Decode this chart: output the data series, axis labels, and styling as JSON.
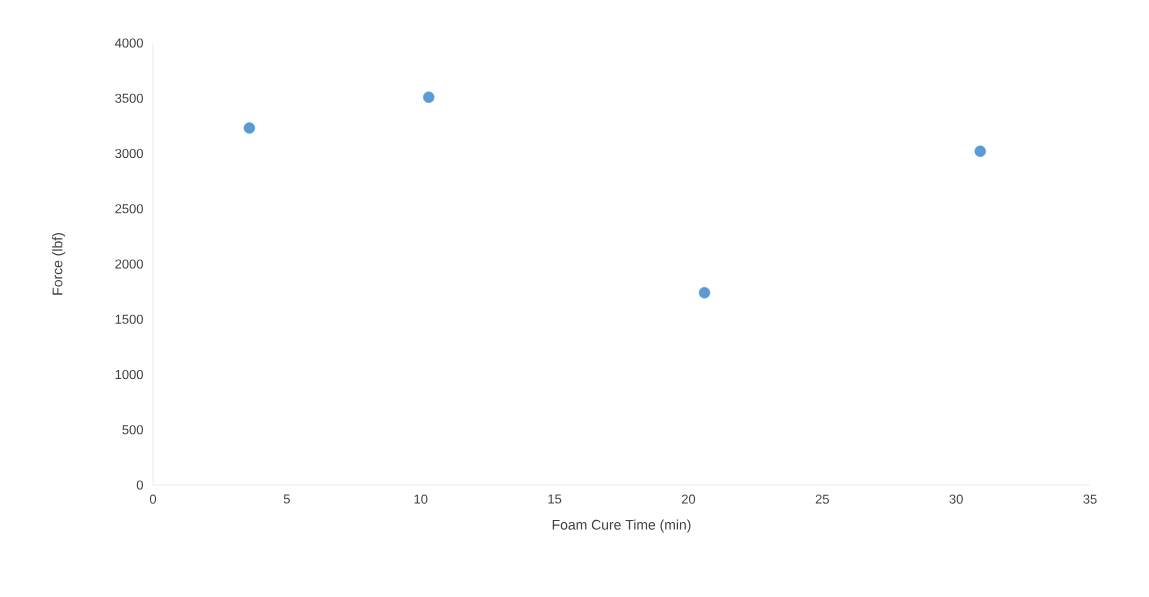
{
  "chart_data": {
    "type": "scatter",
    "xlabel": "Foam Cure Time (min)",
    "ylabel": "Force (lbf)",
    "x": [
      3.6,
      10.3,
      20.6,
      30.9
    ],
    "series": [
      {
        "color": "#5b9bd5",
        "values": [
          3230,
          3510,
          1740,
          3020
        ]
      }
    ],
    "xlim": [
      0,
      35
    ],
    "xticks": [
      0,
      5,
      10,
      15,
      20,
      25,
      30,
      35
    ],
    "ylim": [
      0,
      4000
    ],
    "yticks": [
      0,
      500,
      1000,
      1500,
      2000,
      2500,
      3000,
      3500,
      4000
    ],
    "marker": "circle",
    "grid": false
  }
}
